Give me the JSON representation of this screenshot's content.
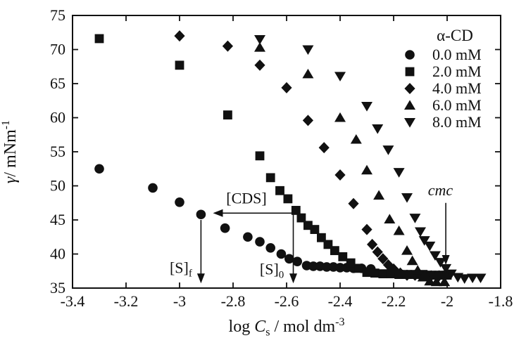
{
  "figure": {
    "background": "#ffffff",
    "ink_color": "#111111"
  },
  "chart_data": {
    "type": "scatter",
    "title": "",
    "xlabel": "log Cs / mol dm-3",
    "ylabel": "γ/ mNm-1",
    "xlabel_parts": [
      {
        "t": "log "
      },
      {
        "t": "C",
        "i": 1
      },
      {
        "t": "s",
        "sub": 1
      },
      {
        "t": " / mol dm"
      },
      {
        "t": "-3",
        "sup": 1
      }
    ],
    "ylabel_parts": [
      {
        "t": "γ",
        "i": 1
      },
      {
        "t": "/ mNm"
      },
      {
        "t": "-1",
        "sup": 1
      }
    ],
    "xlim": [
      -3.4,
      -1.8
    ],
    "ylim": [
      35,
      75
    ],
    "xticks": [
      -3.4,
      -3.2,
      -3.0,
      -2.8,
      -2.6,
      -2.4,
      -2.2,
      -2.0,
      -1.8
    ],
    "xtick_labels": [
      "-3.4",
      "-3.2",
      "-3",
      "-2.8",
      "-2.6",
      "-2.4",
      "-2.2",
      "-2",
      "-1.8"
    ],
    "yticks": [
      35,
      40,
      45,
      50,
      55,
      60,
      65,
      70,
      75
    ],
    "ytick_labels": [
      "35",
      "40",
      "45",
      "50",
      "55",
      "60",
      "65",
      "70",
      "75"
    ],
    "grid": false,
    "legend": {
      "title": "α-CD",
      "position": "top-right",
      "items": [
        {
          "marker": "circle",
          "label": "0.0 mM"
        },
        {
          "marker": "square",
          "label": "2.0 mM"
        },
        {
          "marker": "diamond",
          "label": "4.0 mM"
        },
        {
          "marker": "triangle-up",
          "label": "6.0 mM"
        },
        {
          "marker": "triangle-down",
          "label": "8.0 mM"
        }
      ]
    },
    "series": [
      {
        "name": "0.0 mM",
        "marker": "circle",
        "points": [
          [
            -3.3,
            52.5
          ],
          [
            -3.1,
            49.7
          ],
          [
            -3.0,
            47.6
          ],
          [
            -2.92,
            45.8
          ],
          [
            -2.83,
            43.8
          ],
          [
            -2.745,
            42.5
          ],
          [
            -2.7,
            41.8
          ],
          [
            -2.66,
            40.9
          ],
          [
            -2.62,
            40.0
          ],
          [
            -2.59,
            39.3
          ],
          [
            -2.56,
            38.9
          ],
          [
            -2.525,
            38.3
          ],
          [
            -2.5,
            38.2
          ],
          [
            -2.475,
            38.2
          ],
          [
            -2.45,
            38.1
          ],
          [
            -2.425,
            38.1
          ],
          [
            -2.4,
            38.0
          ],
          [
            -2.375,
            38.0
          ],
          [
            -2.35,
            37.9
          ],
          [
            -2.32,
            37.9
          ],
          [
            -2.285,
            37.8
          ]
        ]
      },
      {
        "name": "2.0 mM",
        "marker": "square",
        "points": [
          [
            -3.3,
            71.6
          ],
          [
            -3.0,
            67.7
          ],
          [
            -2.82,
            60.4
          ],
          [
            -2.7,
            54.4
          ],
          [
            -2.66,
            51.2
          ],
          [
            -2.625,
            49.3
          ],
          [
            -2.595,
            48.1
          ],
          [
            -2.565,
            46.4
          ],
          [
            -2.545,
            45.3
          ],
          [
            -2.52,
            44.2
          ],
          [
            -2.495,
            43.6
          ],
          [
            -2.47,
            42.4
          ],
          [
            -2.445,
            41.4
          ],
          [
            -2.42,
            40.5
          ],
          [
            -2.39,
            39.6
          ],
          [
            -2.36,
            38.7
          ],
          [
            -2.33,
            37.9
          ],
          [
            -2.3,
            37.3
          ],
          [
            -2.27,
            37.2
          ],
          [
            -2.24,
            37.1
          ],
          [
            -2.21,
            37.1
          ],
          [
            -2.18,
            37.0
          ],
          [
            -2.15,
            37.0
          ],
          [
            -2.12,
            37.0
          ],
          [
            -2.09,
            37.0
          ],
          [
            -2.06,
            36.9
          ],
          [
            -2.03,
            36.9
          ],
          [
            -2.0,
            36.9
          ]
        ]
      },
      {
        "name": "4.0 mM",
        "marker": "diamond",
        "points": [
          [
            -3.0,
            72.0
          ],
          [
            -2.82,
            70.5
          ],
          [
            -2.7,
            67.7
          ],
          [
            -2.6,
            64.4
          ],
          [
            -2.52,
            59.6
          ],
          [
            -2.46,
            55.6
          ],
          [
            -2.4,
            51.6
          ],
          [
            -2.35,
            47.4
          ],
          [
            -2.3,
            43.6
          ],
          [
            -2.28,
            41.4
          ],
          [
            -2.26,
            40.3
          ],
          [
            -2.24,
            39.3
          ],
          [
            -2.22,
            38.4
          ],
          [
            -2.2,
            37.8
          ],
          [
            -2.175,
            37.2
          ],
          [
            -2.15,
            36.9
          ],
          [
            -2.12,
            36.9
          ],
          [
            -2.09,
            36.8
          ],
          [
            -2.06,
            36.8
          ],
          [
            -2.03,
            36.8
          ]
        ]
      },
      {
        "name": "6.0 mM",
        "marker": "triangle-up",
        "points": [
          [
            -2.7,
            70.3
          ],
          [
            -2.52,
            66.4
          ],
          [
            -2.4,
            60.0
          ],
          [
            -2.34,
            56.8
          ],
          [
            -2.3,
            52.3
          ],
          [
            -2.255,
            48.6
          ],
          [
            -2.215,
            45.1
          ],
          [
            -2.18,
            43.4
          ],
          [
            -2.15,
            40.5
          ],
          [
            -2.13,
            39.0
          ],
          [
            -2.11,
            37.6
          ],
          [
            -2.09,
            36.6
          ],
          [
            -2.065,
            36.0
          ],
          [
            -2.04,
            35.9
          ],
          [
            -2.01,
            35.9
          ]
        ]
      },
      {
        "name": "8.0 mM",
        "marker": "triangle-down",
        "points": [
          [
            -2.7,
            71.5
          ],
          [
            -2.52,
            70.0
          ],
          [
            -2.4,
            66.1
          ],
          [
            -2.3,
            61.7
          ],
          [
            -2.26,
            58.4
          ],
          [
            -2.22,
            55.3
          ],
          [
            -2.18,
            52.0
          ],
          [
            -2.15,
            48.3
          ],
          [
            -2.12,
            45.3
          ],
          [
            -2.1,
            43.3
          ],
          [
            -2.085,
            42.0
          ],
          [
            -2.065,
            41.2
          ],
          [
            -2.045,
            39.8
          ],
          [
            -2.025,
            38.8
          ],
          [
            -2.005,
            37.9
          ],
          [
            -1.985,
            37.1
          ],
          [
            -1.96,
            36.6
          ],
          [
            -1.935,
            36.4
          ],
          [
            -1.905,
            36.5
          ],
          [
            -1.875,
            36.5
          ]
        ]
      }
    ],
    "annotations": [
      {
        "id": "cds-arrow",
        "type": "arrow-h",
        "label_parts": [
          {
            "t": "[CDS]"
          }
        ],
        "y": 46.0,
        "x_tail": -2.575,
        "x_head": -2.875,
        "label_x": -2.75,
        "label_y": 47.4
      },
      {
        "id": "sf-arrow",
        "type": "arrow-v",
        "label_parts": [
          {
            "t": "[S]"
          },
          {
            "t": "f",
            "sub": 1
          }
        ],
        "x": -2.92,
        "y_tail": 45.0,
        "y_head": 35.7,
        "label_x": -2.995,
        "label_y": 37.2
      },
      {
        "id": "s0-arrow",
        "type": "arrow-v",
        "label_parts": [
          {
            "t": "[S]"
          },
          {
            "t": "0",
            "sub": 1
          }
        ],
        "x": -2.575,
        "y_tail": 46.0,
        "y_head": 35.7,
        "label_x": -2.655,
        "label_y": 37.0
      },
      {
        "id": "cmc-arrow",
        "type": "arrow-v",
        "label_parts": [
          {
            "t": "cmc",
            "i": 1
          }
        ],
        "x": -2.005,
        "y_tail": 47.5,
        "y_head": 38.4,
        "label_x": -2.025,
        "label_y": 48.6
      }
    ]
  }
}
